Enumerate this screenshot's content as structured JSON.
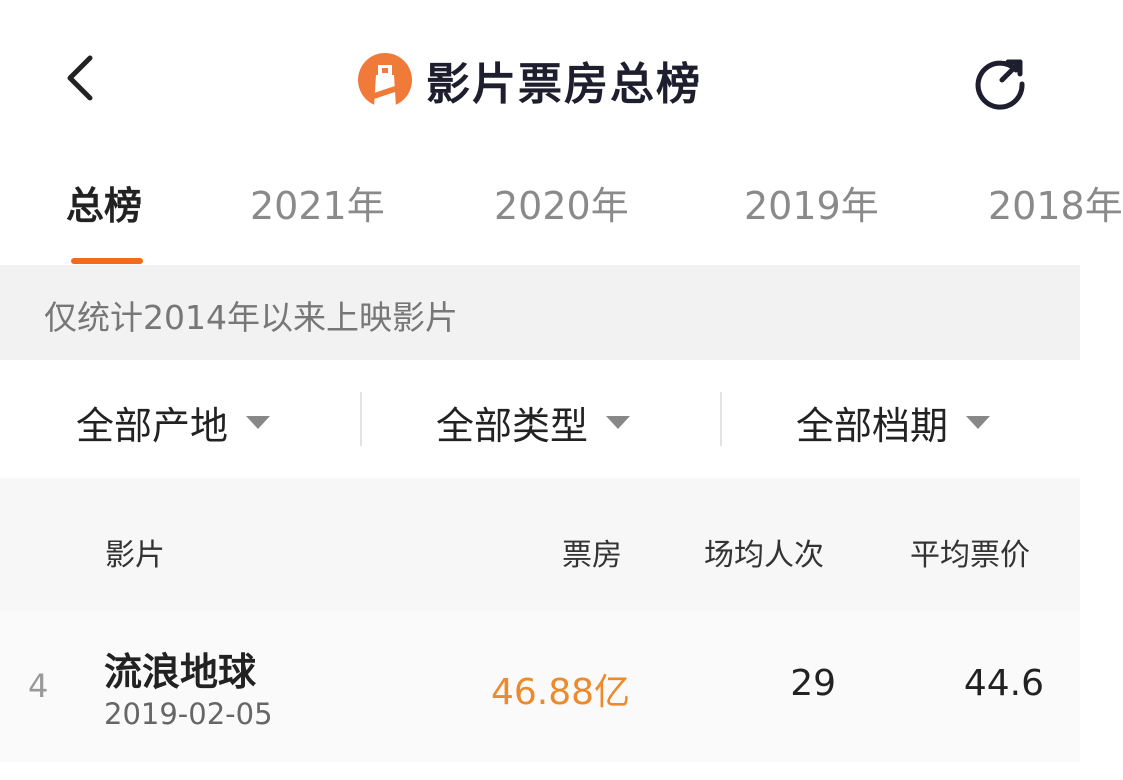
{
  "header": {
    "title": "影片票房总榜",
    "back_icon": "chevron-left-icon",
    "refresh_icon": "refresh-icon",
    "logo": "lighthouse-logo"
  },
  "tabs": [
    {
      "label": "总榜",
      "active": true
    },
    {
      "label": "2021年"
    },
    {
      "label": "2020年"
    },
    {
      "label": "2019年"
    },
    {
      "label": "2018年"
    }
  ],
  "notice": "仅统计2014年以来上映影片",
  "filters": [
    "全部产地",
    "全部类型",
    "全部档期"
  ],
  "table": {
    "columns": [
      "影片",
      "票房",
      "场均人次",
      "平均票价"
    ],
    "rows": [
      {
        "rank": "4",
        "title": "流浪地球",
        "date": "2019-02-05",
        "box_office": "46.88亿",
        "avg_attendance": "29",
        "avg_price": "44.6"
      }
    ]
  },
  "colors": {
    "accent": "#f26b1d",
    "box_office": "#ec8a2c"
  }
}
